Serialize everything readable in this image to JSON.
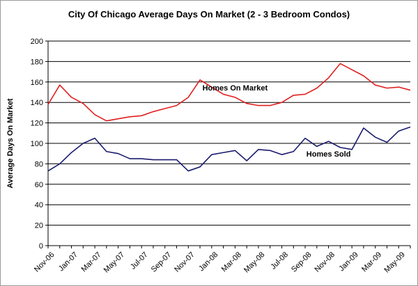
{
  "chart_data": {
    "type": "line",
    "title": "City Of Chicago Average Days On Market (2 - 3 Bedroom Condos)",
    "xlabel": "",
    "ylabel": "Average Days On Market",
    "ylim": [
      0,
      200
    ],
    "yticks": [
      0,
      20,
      40,
      60,
      80,
      100,
      120,
      140,
      160,
      180,
      200
    ],
    "grid": true,
    "legend": "none",
    "x": [
      "Nov-06",
      "Dec-06",
      "Jan-07",
      "Feb-07",
      "Mar-07",
      "Apr-07",
      "May-07",
      "Jun-07",
      "Jul-07",
      "Aug-07",
      "Sep-07",
      "Oct-07",
      "Nov-07",
      "Dec-07",
      "Jan-08",
      "Feb-08",
      "Mar-08",
      "Apr-08",
      "May-08",
      "Jun-08",
      "Jul-08",
      "Aug-08",
      "Sep-08",
      "Oct-08",
      "Nov-08",
      "Dec-08",
      "Jan-09",
      "Feb-09",
      "Mar-09",
      "Apr-09",
      "May-09",
      "Jun-09"
    ],
    "xtick_labels": [
      "Nov-06",
      "Jan-07",
      "Mar-07",
      "May-07",
      "Jul-07",
      "Sep-07",
      "Nov-07",
      "Jan-08",
      "Mar-08",
      "May-08",
      "Jul-08",
      "Sep-08",
      "Nov-08",
      "Jan-09",
      "Mar-09",
      "May-09"
    ],
    "series": [
      {
        "name": "Homes On Market",
        "color": "#e02020",
        "values": [
          138,
          157,
          145,
          139,
          128,
          122,
          124,
          126,
          127,
          131,
          134,
          137,
          145,
          162,
          155,
          148,
          145,
          139,
          137,
          137,
          140,
          147,
          148,
          154,
          164,
          178,
          172,
          166,
          157,
          154,
          155,
          152
        ]
      },
      {
        "name": "Homes Sold",
        "color": "#1a1a6e",
        "values": [
          73,
          80,
          91,
          100,
          105,
          92,
          90,
          85,
          85,
          84,
          84,
          84,
          73,
          77,
          89,
          91,
          93,
          83,
          94,
          93,
          89,
          92,
          105,
          97,
          102,
          96,
          94,
          115,
          106,
          101,
          112,
          116
        ]
      }
    ],
    "annotations": [
      {
        "text": "Homes On Market",
        "series": "Homes On Market"
      },
      {
        "text": "Homes Sold",
        "series": "Homes Sold"
      }
    ]
  }
}
